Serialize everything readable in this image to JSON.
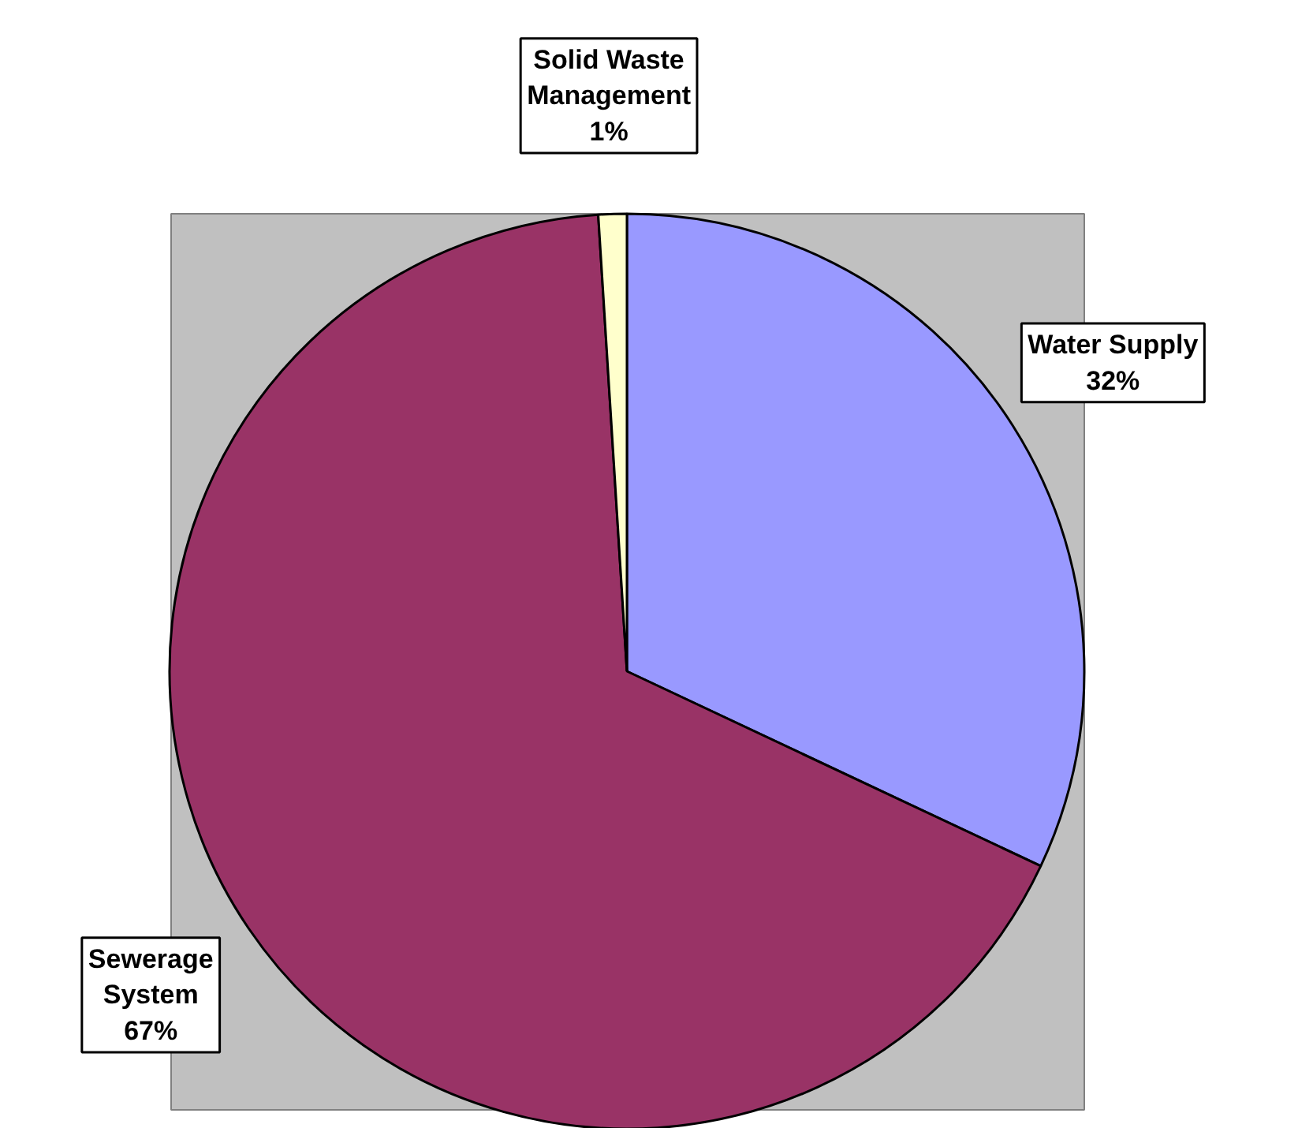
{
  "chart_data": {
    "type": "pie",
    "categories": [
      "Water Supply",
      "Sewerage System",
      "Solid Waste Management"
    ],
    "values": [
      32,
      67,
      1
    ],
    "colors": [
      "#9999ff",
      "#993366",
      "#ffffcc"
    ],
    "value_labels": [
      "32%",
      "67%",
      "1%"
    ]
  }
}
